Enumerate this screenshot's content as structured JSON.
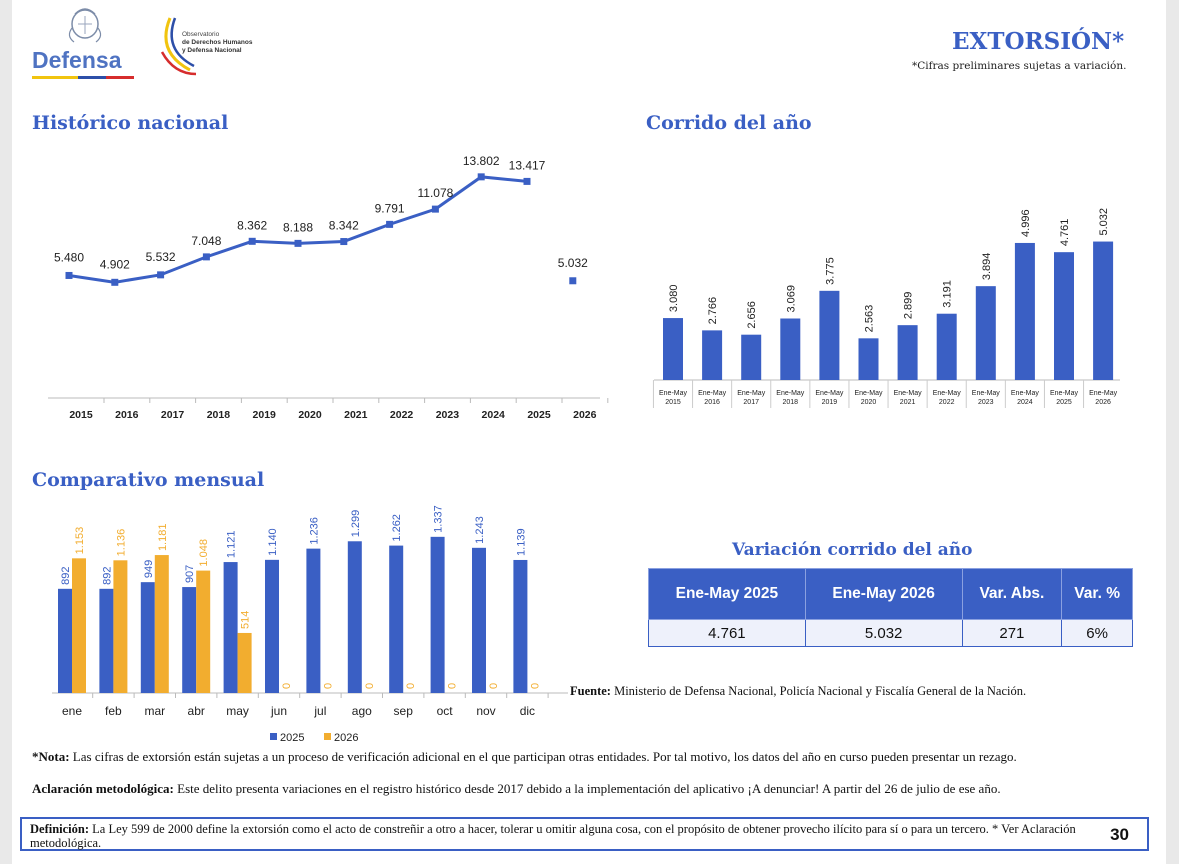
{
  "header": {
    "logo_text": "Defensa",
    "observatory_text": [
      "Observatorio",
      "de Derechos Humanos",
      "y Defensa Nacional"
    ],
    "title": "EXTORSIÓN*",
    "note": "*Cifras preliminares sujetas a variación."
  },
  "sections": {
    "historico": "Histórico nacional",
    "corrido": "Corrido del año",
    "comparativo": "Comparativo mensual",
    "variacion": "Variación corrido del año"
  },
  "chart_data": [
    {
      "id": "historico",
      "type": "line",
      "categories": [
        "2015",
        "2016",
        "2017",
        "2018",
        "2019",
        "2020",
        "2021",
        "2022",
        "2023",
        "2024",
        "2025",
        "2026"
      ],
      "values": [
        5480,
        4902,
        5532,
        7048,
        8362,
        8188,
        8342,
        9791,
        11078,
        13802,
        13417,
        5032
      ],
      "labels": [
        "5.480",
        "4.902",
        "5.532",
        "7.048",
        "8.362",
        "8.188",
        "8.342",
        "9.791",
        "11.078",
        "13.802",
        "13.417",
        "5.032"
      ],
      "note": "2026 shown as an isolated point (partial year)",
      "color": "#3a5fc4"
    },
    {
      "id": "corrido",
      "type": "bar",
      "categories": [
        [
          "Ene-May",
          "2015"
        ],
        [
          "Ene-May",
          "2016"
        ],
        [
          "Ene-May",
          "2017"
        ],
        [
          "Ene-May",
          "2018"
        ],
        [
          "Ene-May",
          "2019"
        ],
        [
          "Ene-May",
          "2020"
        ],
        [
          "Ene-May",
          "2021"
        ],
        [
          "Ene-May",
          "2022"
        ],
        [
          "Ene-May",
          "2023"
        ],
        [
          "Ene-May",
          "2024"
        ],
        [
          "Ene-May",
          "2025"
        ],
        [
          "Ene-May",
          "2026"
        ]
      ],
      "values": [
        3080,
        2766,
        2656,
        3069,
        3775,
        2563,
        2899,
        3191,
        3894,
        4996,
        4761,
        5032
      ],
      "labels": [
        "3.080",
        "2.766",
        "2.656",
        "3.069",
        "3.775",
        "2.563",
        "2.899",
        "3.191",
        "3.894",
        "4.996",
        "4.761",
        "5.032"
      ],
      "color": "#3a5fc4"
    },
    {
      "id": "comparativo",
      "type": "bar",
      "categories": [
        "ene",
        "feb",
        "mar",
        "abr",
        "may",
        "jun",
        "jul",
        "ago",
        "sep",
        "oct",
        "nov",
        "dic"
      ],
      "series": [
        {
          "name": "2025",
          "color": "#3a5fc4",
          "values": [
            892,
            892,
            949,
            907,
            1121,
            1140,
            1236,
            1299,
            1262,
            1337,
            1243,
            1139
          ],
          "labels": [
            "892",
            "892",
            "949",
            "907",
            "1.121",
            "1.140",
            "1.236",
            "1.299",
            "1.262",
            "1.337",
            "1.243",
            "1.139"
          ]
        },
        {
          "name": "2026",
          "color": "#f2ad2f",
          "values": [
            1153,
            1136,
            1181,
            1048,
            514,
            0,
            0,
            0,
            0,
            0,
            0,
            0
          ],
          "labels": [
            "1.153",
            "1.136",
            "1.181",
            "1.048",
            "514",
            "0",
            "0",
            "0",
            "0",
            "0",
            "0",
            "0"
          ]
        }
      ],
      "legend": "bottom"
    }
  ],
  "variacion_table": {
    "headers": [
      "Ene-May 2025",
      "Ene-May 2026",
      "Var. Abs.",
      "Var. %"
    ],
    "row": [
      "4.761",
      "5.032",
      "271",
      "6%"
    ]
  },
  "fuente": {
    "label": "Fuente:",
    "text": " Ministerio de Defensa Nacional, Policía Nacional y Fiscalía General de la Nación."
  },
  "nota": {
    "label": "*Nota:",
    "text": " Las cifras de extorsión están sujetas a un proceso de verificación adicional en el que participan otras entidades. Por tal motivo, los datos del año en curso pueden presentar un rezago."
  },
  "aclaracion": {
    "label": "Aclaración metodológica:",
    "text": " Este delito presenta variaciones en el registro histórico desde 2017 debido a la implementación del aplicativo ¡A denunciar! A partir del 26 de julio de ese año."
  },
  "definicion": {
    "label": "Definición:",
    "text": " La Ley 599 de 2000 define la extorsión como el acto de constreñir a otro a hacer, tolerar u omitir alguna cosa, con el propósito de obtener provecho ilícito para sí o para un tercero. * Ver Aclaración metodológica."
  },
  "page_number": "30"
}
